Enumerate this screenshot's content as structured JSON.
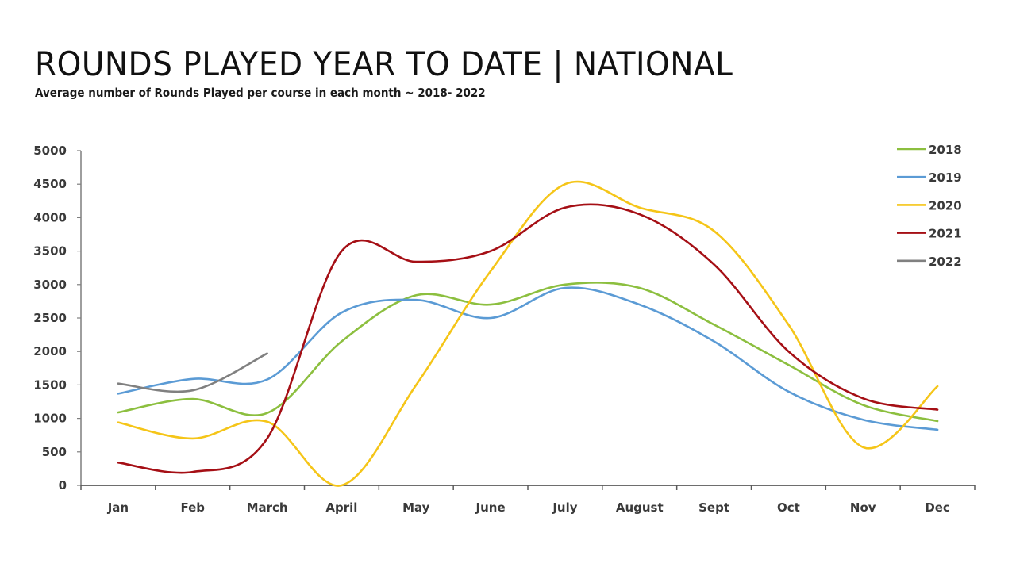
{
  "header": {
    "title": "ROUNDS PLAYED YEAR TO DATE | NATIONAL",
    "subtitle": "Average number of Rounds Played per course in each month ~ 2018- 2022"
  },
  "chart_data": {
    "type": "line",
    "title": "ROUNDS PLAYED YEAR TO DATE | NATIONAL",
    "subtitle": "Average number of Rounds Played per course in each month ~ 2018- 2022",
    "xlabel": "",
    "ylabel": "",
    "categories": [
      "Jan",
      "Feb",
      "March",
      "April",
      "May",
      "June",
      "July",
      "August",
      "Sept",
      "Oct",
      "Nov",
      "Dec"
    ],
    "ylim": [
      0,
      5000
    ],
    "yticks": [
      0,
      500,
      1000,
      1500,
      2000,
      2500,
      3000,
      3500,
      4000,
      4500,
      5000
    ],
    "grid": false,
    "legend_position": "right-top",
    "smoothed": true,
    "series": [
      {
        "name": "2018",
        "color": "#8cbf3f",
        "values": [
          1090,
          1290,
          1080,
          2150,
          2840,
          2700,
          3000,
          2950,
          2400,
          1800,
          1200,
          960
        ]
      },
      {
        "name": "2019",
        "color": "#5b9bd5",
        "values": [
          1370,
          1590,
          1580,
          2580,
          2770,
          2500,
          2950,
          2700,
          2150,
          1400,
          980,
          830
        ]
      },
      {
        "name": "2020",
        "color": "#f5c518",
        "values": [
          940,
          700,
          950,
          0,
          1500,
          3200,
          4500,
          4150,
          3800,
          2400,
          570,
          1480
        ]
      },
      {
        "name": "2021",
        "color": "#a50f15",
        "values": [
          340,
          200,
          700,
          3500,
          3340,
          3500,
          4150,
          4050,
          3300,
          2000,
          1300,
          1130
        ]
      },
      {
        "name": "2022",
        "color": "#808080",
        "values": [
          1520,
          1420,
          1970
        ]
      }
    ]
  }
}
